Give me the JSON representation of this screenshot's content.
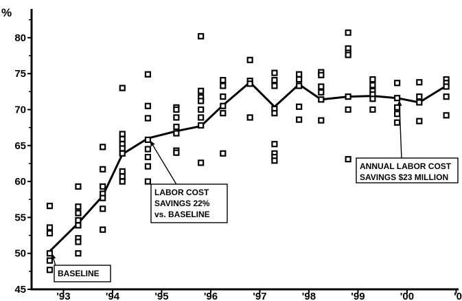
{
  "chart_data": {
    "type": "line+scatter",
    "y_unit_label": "%",
    "ylim": [
      45,
      84
    ],
    "yticks": [
      45,
      50,
      55,
      60,
      65,
      70,
      75,
      80
    ],
    "x_tick_labels": [
      "'93",
      "'94",
      "'95",
      "'96",
      "'97",
      "'98",
      "'99",
      "'00",
      "'0"
    ],
    "xlim": [
      1992.35,
      2001.05
    ],
    "grid": false,
    "series": [
      {
        "kind": "line",
        "points": [
          {
            "x": 1992.72,
            "y": 50.3
          },
          {
            "x": 1993.3,
            "y": 54.2
          },
          {
            "x": 1993.8,
            "y": 58.0
          },
          {
            "x": 1994.2,
            "y": 63.8
          },
          {
            "x": 1994.72,
            "y": 66.0
          },
          {
            "x": 1995.3,
            "y": 67.0
          },
          {
            "x": 1995.8,
            "y": 67.7
          },
          {
            "x": 1996.25,
            "y": 70.6
          },
          {
            "x": 1996.8,
            "y": 73.8
          },
          {
            "x": 1997.3,
            "y": 70.4
          },
          {
            "x": 1997.8,
            "y": 73.5
          },
          {
            "x": 1998.25,
            "y": 71.4
          },
          {
            "x": 1998.8,
            "y": 71.8
          },
          {
            "x": 1999.3,
            "y": 71.9
          },
          {
            "x": 1999.8,
            "y": 71.6
          },
          {
            "x": 2000.25,
            "y": 71.0
          },
          {
            "x": 2000.8,
            "y": 73.3
          }
        ]
      },
      {
        "kind": "scatter",
        "marker": "square",
        "points": [
          {
            "x": 1992.72,
            "y": 56.6
          },
          {
            "x": 1992.72,
            "y": 53.6
          },
          {
            "x": 1992.72,
            "y": 52.8
          },
          {
            "x": 1992.72,
            "y": 50.0
          },
          {
            "x": 1992.72,
            "y": 49.0
          },
          {
            "x": 1992.72,
            "y": 47.7
          },
          {
            "x": 1993.3,
            "y": 59.3
          },
          {
            "x": 1993.3,
            "y": 56.5
          },
          {
            "x": 1993.3,
            "y": 55.6
          },
          {
            "x": 1993.3,
            "y": 54.6
          },
          {
            "x": 1993.3,
            "y": 53.9
          },
          {
            "x": 1993.3,
            "y": 52.1
          },
          {
            "x": 1993.3,
            "y": 51.6
          },
          {
            "x": 1993.3,
            "y": 50.0
          },
          {
            "x": 1993.8,
            "y": 64.8
          },
          {
            "x": 1993.8,
            "y": 61.7
          },
          {
            "x": 1993.8,
            "y": 59.3
          },
          {
            "x": 1993.8,
            "y": 58.3
          },
          {
            "x": 1993.8,
            "y": 57.7
          },
          {
            "x": 1993.8,
            "y": 56.2
          },
          {
            "x": 1993.8,
            "y": 53.3
          },
          {
            "x": 1994.2,
            "y": 73.0
          },
          {
            "x": 1994.2,
            "y": 66.6
          },
          {
            "x": 1994.2,
            "y": 65.9
          },
          {
            "x": 1994.2,
            "y": 65.2
          },
          {
            "x": 1994.2,
            "y": 64.6
          },
          {
            "x": 1994.2,
            "y": 63.9
          },
          {
            "x": 1994.2,
            "y": 61.4
          },
          {
            "x": 1994.2,
            "y": 60.7
          },
          {
            "x": 1994.2,
            "y": 60.0
          },
          {
            "x": 1994.72,
            "y": 74.9
          },
          {
            "x": 1994.72,
            "y": 70.5
          },
          {
            "x": 1994.72,
            "y": 68.8
          },
          {
            "x": 1994.72,
            "y": 65.8
          },
          {
            "x": 1994.72,
            "y": 64.5
          },
          {
            "x": 1994.72,
            "y": 63.4
          },
          {
            "x": 1994.72,
            "y": 62.1
          },
          {
            "x": 1994.72,
            "y": 60.0
          },
          {
            "x": 1995.3,
            "y": 70.3
          },
          {
            "x": 1995.3,
            "y": 70.0
          },
          {
            "x": 1995.3,
            "y": 68.9
          },
          {
            "x": 1995.3,
            "y": 67.6
          },
          {
            "x": 1995.3,
            "y": 66.7
          },
          {
            "x": 1995.3,
            "y": 64.3
          },
          {
            "x": 1995.3,
            "y": 64.0
          },
          {
            "x": 1995.8,
            "y": 80.2
          },
          {
            "x": 1995.8,
            "y": 72.6
          },
          {
            "x": 1995.8,
            "y": 71.7
          },
          {
            "x": 1995.8,
            "y": 71.2
          },
          {
            "x": 1995.8,
            "y": 70.0
          },
          {
            "x": 1995.8,
            "y": 68.9
          },
          {
            "x": 1995.8,
            "y": 67.8
          },
          {
            "x": 1995.8,
            "y": 62.6
          },
          {
            "x": 1996.25,
            "y": 74.1
          },
          {
            "x": 1996.25,
            "y": 73.3
          },
          {
            "x": 1996.25,
            "y": 71.8
          },
          {
            "x": 1996.25,
            "y": 70.5
          },
          {
            "x": 1996.25,
            "y": 69.5
          },
          {
            "x": 1996.25,
            "y": 63.9
          },
          {
            "x": 1996.8,
            "y": 76.9
          },
          {
            "x": 1996.8,
            "y": 74.0
          },
          {
            "x": 1996.8,
            "y": 73.6
          },
          {
            "x": 1996.8,
            "y": 68.9
          },
          {
            "x": 1997.3,
            "y": 75.1
          },
          {
            "x": 1997.3,
            "y": 74.1
          },
          {
            "x": 1997.3,
            "y": 73.3
          },
          {
            "x": 1997.3,
            "y": 70.1
          },
          {
            "x": 1997.3,
            "y": 69.5
          },
          {
            "x": 1997.3,
            "y": 65.2
          },
          {
            "x": 1997.3,
            "y": 63.9
          },
          {
            "x": 1997.3,
            "y": 63.4
          },
          {
            "x": 1997.3,
            "y": 62.9
          },
          {
            "x": 1997.8,
            "y": 74.9
          },
          {
            "x": 1997.8,
            "y": 74.2
          },
          {
            "x": 1997.8,
            "y": 73.3
          },
          {
            "x": 1997.8,
            "y": 70.4
          },
          {
            "x": 1997.8,
            "y": 68.6
          },
          {
            "x": 1998.25,
            "y": 75.2
          },
          {
            "x": 1998.25,
            "y": 74.8
          },
          {
            "x": 1998.25,
            "y": 73.2
          },
          {
            "x": 1998.25,
            "y": 72.4
          },
          {
            "x": 1998.25,
            "y": 71.4
          },
          {
            "x": 1998.25,
            "y": 68.5
          },
          {
            "x": 1998.8,
            "y": 80.7
          },
          {
            "x": 1998.8,
            "y": 78.5
          },
          {
            "x": 1998.8,
            "y": 77.9
          },
          {
            "x": 1998.8,
            "y": 77.6
          },
          {
            "x": 1998.8,
            "y": 71.8
          },
          {
            "x": 1998.8,
            "y": 70.0
          },
          {
            "x": 1998.8,
            "y": 63.1
          },
          {
            "x": 1999.3,
            "y": 74.2
          },
          {
            "x": 1999.3,
            "y": 73.4
          },
          {
            "x": 1999.3,
            "y": 72.6
          },
          {
            "x": 1999.3,
            "y": 72.1
          },
          {
            "x": 1999.3,
            "y": 71.5
          },
          {
            "x": 1999.3,
            "y": 70.0
          },
          {
            "x": 1999.8,
            "y": 73.7
          },
          {
            "x": 1999.8,
            "y": 71.6
          },
          {
            "x": 1999.8,
            "y": 70.3
          },
          {
            "x": 1999.8,
            "y": 69.4
          },
          {
            "x": 1999.8,
            "y": 68.2
          },
          {
            "x": 2000.25,
            "y": 73.8
          },
          {
            "x": 2000.25,
            "y": 71.8
          },
          {
            "x": 2000.25,
            "y": 71.0
          },
          {
            "x": 2000.25,
            "y": 68.4
          },
          {
            "x": 2000.8,
            "y": 74.2
          },
          {
            "x": 2000.8,
            "y": 73.7
          },
          {
            "x": 2000.8,
            "y": 73.2
          },
          {
            "x": 2000.8,
            "y": 71.8
          },
          {
            "x": 2000.8,
            "y": 69.2
          }
        ]
      }
    ],
    "annotations": [
      {
        "lines": [
          "BASELINE"
        ],
        "target": {
          "x": 1992.72,
          "y": 50.3
        }
      },
      {
        "lines": [
          "LABOR COST",
          "SAVINGS 22%",
          "vs. BASELINE"
        ],
        "target": {
          "x": 1994.72,
          "y": 66.0
        }
      },
      {
        "lines": [
          "ANNUAL LABOR COST",
          "SAVINGS $23 MILLION"
        ],
        "target": {
          "x": 1999.8,
          "y": 71.6
        }
      }
    ]
  }
}
